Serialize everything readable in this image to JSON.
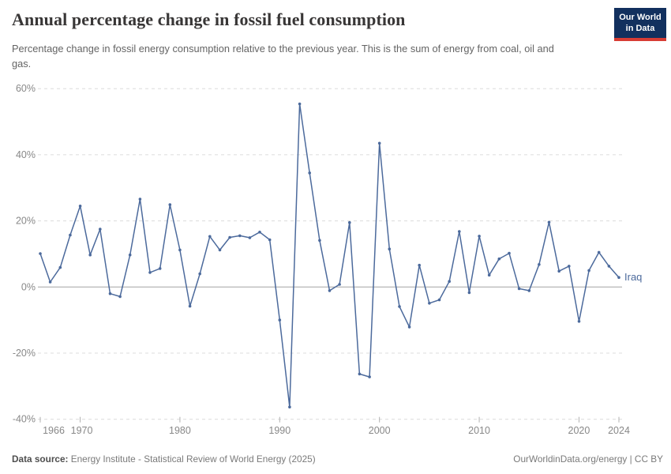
{
  "header": {
    "title": "Annual percentage change in fossil fuel consumption",
    "subtitle": "Percentage change in fossil energy consumption relative to the previous year. This is the sum of energy from coal, oil and gas.",
    "logo": {
      "line1": "Our World",
      "line2": "in Data",
      "bg_color": "#12305e",
      "accent_color": "#d73c34"
    }
  },
  "chart_data": {
    "type": "line",
    "title": "Annual percentage change in fossil fuel consumption",
    "xlabel": "",
    "ylabel": "",
    "xlim": [
      1966,
      2024
    ],
    "ylim": [
      -40,
      60
    ],
    "grid": "dashed-horizontal",
    "zero_line": true,
    "legend_position": "end-of-line",
    "x": [
      1966,
      1967,
      1968,
      1969,
      1970,
      1971,
      1972,
      1973,
      1974,
      1975,
      1976,
      1977,
      1978,
      1979,
      1980,
      1981,
      1982,
      1983,
      1984,
      1985,
      1986,
      1987,
      1988,
      1989,
      1990,
      1991,
      1992,
      1993,
      1994,
      1995,
      1996,
      1997,
      1998,
      1999,
      2000,
      2001,
      2002,
      2003,
      2004,
      2005,
      2006,
      2007,
      2008,
      2009,
      2010,
      2011,
      2012,
      2013,
      2014,
      2015,
      2016,
      2017,
      2018,
      2019,
      2020,
      2021,
      2022,
      2023,
      2024
    ],
    "series": [
      {
        "name": "Iraq",
        "color": "#4C6A9C",
        "values": [
          10.1,
          1.5,
          5.9,
          15.7,
          24.5,
          9.7,
          17.5,
          -2.0,
          -2.9,
          9.7,
          26.6,
          4.4,
          5.6,
          24.9,
          11.2,
          -5.8,
          4.0,
          15.3,
          11.2,
          15.0,
          15.5,
          14.9,
          16.6,
          14.3,
          -10.0,
          -36.3,
          55.4,
          34.5,
          14.1,
          -1.1,
          0.8,
          19.5,
          -26.3,
          -27.2,
          43.5,
          11.5,
          -5.9,
          -12.1,
          6.6,
          -4.9,
          -3.9,
          1.7,
          16.8,
          -1.7,
          15.4,
          3.6,
          8.5,
          10.2,
          -0.5,
          -1.1,
          6.8,
          19.6,
          4.8,
          6.3,
          -10.4,
          5.0,
          10.5,
          6.3,
          2.9
        ]
      }
    ],
    "y_ticks": [
      {
        "value": 60,
        "label": "60%"
      },
      {
        "value": 40,
        "label": "40%"
      },
      {
        "value": 20,
        "label": "20%"
      },
      {
        "value": 0,
        "label": "0%"
      },
      {
        "value": -20,
        "label": "-20%"
      },
      {
        "value": -40,
        "label": "-40%"
      }
    ],
    "x_ticks": [
      {
        "value": 1966,
        "label": "1966",
        "label_offset": 17
      },
      {
        "value": 1970,
        "label": "1970",
        "label_offset": 2
      },
      {
        "value": 1980,
        "label": "1980",
        "label_offset": 0
      },
      {
        "value": 1990,
        "label": "1990",
        "label_offset": 0
      },
      {
        "value": 2000,
        "label": "2000",
        "label_offset": 0
      },
      {
        "value": 2010,
        "label": "2010",
        "label_offset": 0
      },
      {
        "value": 2020,
        "label": "2020",
        "label_offset": 0
      },
      {
        "value": 2024,
        "label": "2024",
        "label_offset": 0
      }
    ],
    "end_label": "Iraq",
    "colors": {
      "grid": "#dcdcdc",
      "zero_line": "#a3a3a3",
      "tick": "#b0b0b0",
      "axis_text": "#888888"
    }
  },
  "footer": {
    "source_label": "Data source:",
    "source_text": "Energy Institute - Statistical Review of World Energy (2025)",
    "right_text": "OurWorldinData.org/energy | CC BY"
  }
}
